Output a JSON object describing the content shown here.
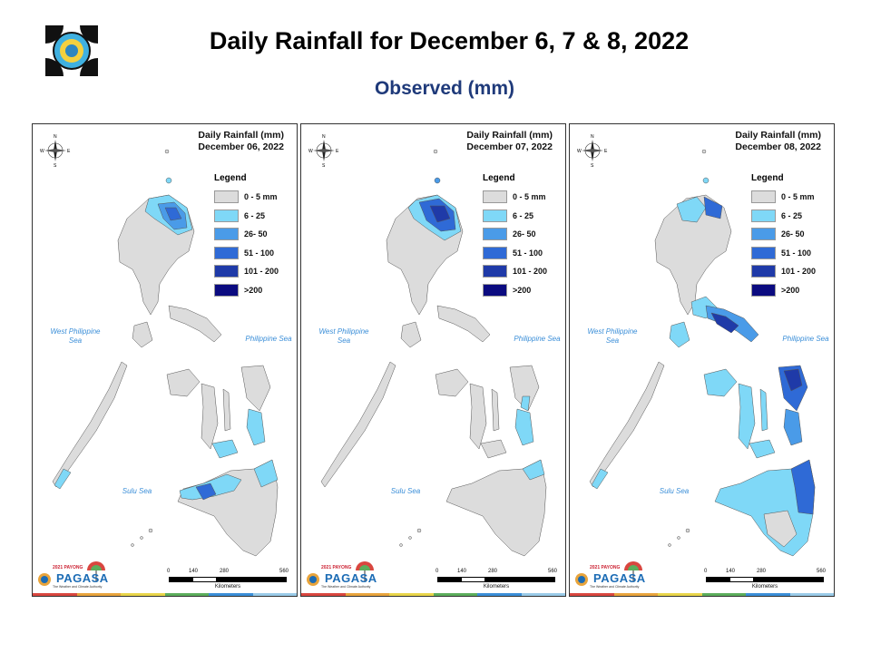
{
  "header": {
    "title": "Daily Rainfall for December 6, 7 & 8, 2022",
    "subtitle": "Observed (mm)"
  },
  "legend": {
    "title": "Legend",
    "items": [
      {
        "label": "0 - 5 mm",
        "color": "#dcdcdc"
      },
      {
        "label": "6 - 25",
        "color": "#7fd8f7"
      },
      {
        "label": "26- 50",
        "color": "#4a9be8"
      },
      {
        "label": "51 - 100",
        "color": "#2f6ad6"
      },
      {
        "label": "101 - 200",
        "color": "#1f3aa8"
      },
      {
        "label": ">200",
        "color": "#0b0b80"
      }
    ]
  },
  "panels": [
    {
      "heading": "Daily Rainfall (mm)",
      "date": "December 06, 2022"
    },
    {
      "heading": "Daily Rainfall (mm)",
      "date": "December 07, 2022"
    },
    {
      "heading": "Daily Rainfall (mm)",
      "date": "December 08, 2022"
    }
  ],
  "seas": {
    "west": "West Philippine Sea",
    "philippine": "Philippine Sea",
    "sulu": "Sulu Sea"
  },
  "compass": {
    "n": "N",
    "s": "S",
    "e": "E",
    "w": "W"
  },
  "scale": {
    "ticks": [
      "0",
      "140",
      "280",
      "560"
    ],
    "unit": "Kilometers"
  },
  "branding": {
    "top": "2021 PAYONG",
    "name": "PAGASA",
    "tagline": "The Weather and Climate Authority"
  }
}
